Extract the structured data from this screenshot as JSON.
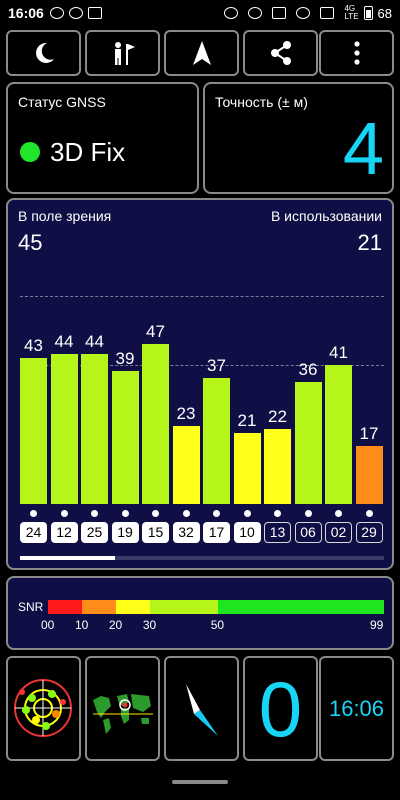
{
  "status_bar": {
    "time": "16:06",
    "network_label": "4G\nLTE",
    "battery": "68"
  },
  "toolbar": {
    "buttons": [
      {
        "icon": "moon-icon"
      },
      {
        "icon": "map-flag-person-icon"
      },
      {
        "icon": "navigation-arrow-icon"
      },
      {
        "icon": "share-icon"
      },
      {
        "icon": "more-vertical-icon"
      }
    ]
  },
  "gnss_status": {
    "title": "Статус GNSS",
    "fix": "3D Fix",
    "indicator_color": "#21e52a"
  },
  "accuracy": {
    "title": "Точность (± м)",
    "value": "4",
    "color": "#19d5f5"
  },
  "satellites": {
    "in_view_label": "В поле зрения",
    "in_view": "45",
    "in_use_label": "В использовании",
    "in_use": "21",
    "bars": [
      {
        "prn": "24",
        "snr": 43,
        "used": true
      },
      {
        "prn": "12",
        "snr": 44,
        "used": true
      },
      {
        "prn": "25",
        "snr": 44,
        "used": true
      },
      {
        "prn": "19",
        "snr": 39,
        "used": true
      },
      {
        "prn": "15",
        "snr": 47,
        "used": true
      },
      {
        "prn": "32",
        "snr": 23,
        "used": true
      },
      {
        "prn": "17",
        "snr": 37,
        "used": true
      },
      {
        "prn": "10",
        "snr": 21,
        "used": true
      },
      {
        "prn": "13",
        "snr": 22,
        "used": false
      },
      {
        "prn": "06",
        "snr": 36,
        "used": false
      },
      {
        "prn": "02",
        "snr": 41,
        "used": false
      },
      {
        "prn": "29",
        "snr": 17,
        "used": false
      }
    ],
    "scroll_fraction": 0.26
  },
  "snr_legend": {
    "label": "SNR",
    "segments": [
      {
        "from": 0,
        "to": 10,
        "color": "#ff1a1a"
      },
      {
        "from": 10,
        "to": 20,
        "color": "#ff8c1a"
      },
      {
        "from": 20,
        "to": 30,
        "color": "#ffff1a"
      },
      {
        "from": 30,
        "to": 50,
        "color": "#b5f51a"
      },
      {
        "from": 50,
        "to": 99,
        "color": "#1ee51e"
      }
    ],
    "ticks": [
      "00",
      "10",
      "20",
      "30",
      "50",
      "99"
    ]
  },
  "bottom": {
    "tiles": [
      {
        "name": "sky-view-tile",
        "icon": "sky-radar-icon"
      },
      {
        "name": "world-map-tile",
        "icon": "world-map-icon"
      },
      {
        "name": "compass-tile",
        "icon": "compass-needle-icon"
      },
      {
        "name": "speed-tile",
        "value": "0"
      },
      {
        "name": "clock-tile",
        "value": "16:06"
      }
    ]
  }
}
